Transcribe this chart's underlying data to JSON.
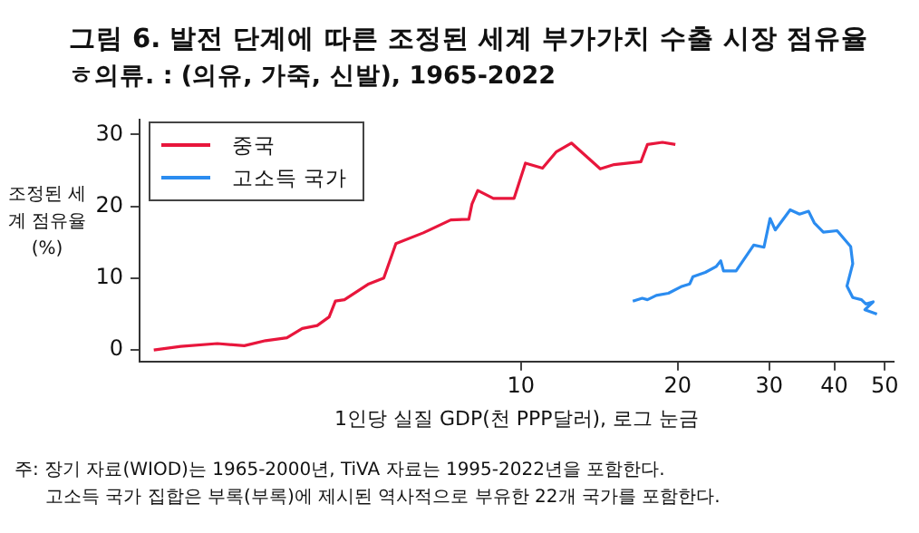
{
  "chart_data": {
    "type": "line",
    "title": "그림 6. 발전 단계에 따른 조정된 세계 부가가치 수출 시장 점유율",
    "subtitle": "ㅎ의류. : (의유, 가죽, 신발), 1965-2022",
    "xlabel": "1인당 실질 GDP(천 PPP달러), 로그 눈금",
    "ylabel": "조정된 세계 점유율(%)",
    "annotations": [
      "주: 장기 자료(WIOD)는 1965-2000년, TiVA 자료는 1995-2022년을 포함한다.",
      "고소득 국가 집합은 부록(부록)에 제시된 역사적으로 부유한 22개 국가를 포함한다."
    ],
    "log": "x",
    "xlim": [
      1.85,
      52
    ],
    "xticks": [
      10,
      20,
      30,
      40,
      50
    ],
    "ylim": [
      -1.6,
      32
    ],
    "yticks": [
      0,
      10,
      20,
      30
    ],
    "grid": false,
    "legend": "top left",
    "marker": "none",
    "line_style": "solid",
    "series": [
      {
        "name": "중국",
        "color": "#e8163c",
        "x": [
          1.97,
          2.22,
          2.61,
          2.94,
          3.23,
          3.55,
          3.8,
          4.06,
          4.28,
          4.4,
          4.58,
          5.1,
          5.45,
          5.75,
          6.49,
          7.33,
          7.94,
          8.05,
          8.26,
          8.85,
          9.7,
          10.2,
          11.0,
          11.7,
          12.5,
          14.2,
          15.1,
          17.0,
          17.5,
          18.7,
          19.8
        ],
        "values": [
          0,
          0.5,
          0.9,
          0.6,
          1.3,
          1.7,
          3.0,
          3.4,
          4.6,
          6.8,
          7.0,
          9.2,
          10.0,
          14.8,
          16.3,
          18.1,
          18.2,
          20.3,
          22.2,
          21.1,
          21.1,
          26.0,
          25.3,
          27.6,
          28.8,
          25.2,
          25.8,
          26.2,
          28.6,
          28.9,
          28.6
        ]
      },
      {
        "name": "고소득 국가",
        "color": "#2b8cf0",
        "x": [
          16.4,
          17.1,
          17.5,
          18.2,
          19.2,
          20.3,
          21.1,
          21.4,
          22.6,
          23.7,
          24.2,
          24.5,
          25.9,
          28.0,
          29.3,
          30.1,
          30.8,
          32.9,
          34.3,
          35.7,
          36.6,
          38.1,
          40.5,
          43.0,
          43.4,
          42.3,
          42.7,
          43.4,
          45.1,
          46.0,
          47.5,
          45.8,
          48.3
        ],
        "values": [
          6.8,
          7.2,
          7.0,
          7.6,
          7.9,
          8.8,
          9.2,
          10.2,
          10.8,
          11.6,
          12.4,
          11.0,
          11.0,
          14.6,
          14.3,
          18.3,
          16.7,
          19.5,
          18.9,
          19.3,
          17.7,
          16.4,
          16.6,
          14.4,
          12.0,
          8.9,
          8.3,
          7.3,
          7.0,
          6.4,
          6.7,
          5.6,
          5.0
        ]
      }
    ]
  }
}
